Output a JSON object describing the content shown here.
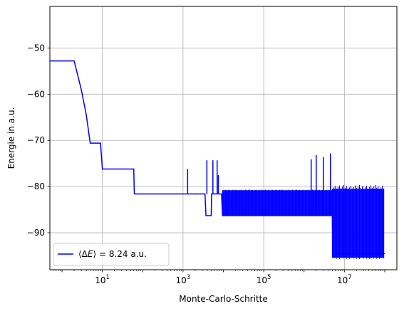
{
  "chart_data": {
    "type": "line",
    "xlabel": "Monte-Carlo-Schritte",
    "ylabel": "Energie in a.u.",
    "x_scale": "log",
    "xlim": [
      0.5,
      200000000
    ],
    "ylim": [
      -98,
      -41
    ],
    "grid": true,
    "legend_position": "bottom-left",
    "x_ticks": [
      {
        "value": 10,
        "base": "10",
        "exp": "1"
      },
      {
        "value": 1000,
        "base": "10",
        "exp": "3"
      },
      {
        "value": 100000,
        "base": "10",
        "exp": "5"
      },
      {
        "value": 10000000,
        "base": "10",
        "exp": "7"
      }
    ],
    "y_ticks": [
      {
        "value": -50,
        "label": "−50"
      },
      {
        "value": -60,
        "label": "−60"
      },
      {
        "value": -70,
        "label": "−70"
      },
      {
        "value": -80,
        "label": "−80"
      },
      {
        "value": -90,
        "label": "−90"
      }
    ],
    "series": [
      {
        "name": "⟨ΔE⟩ = 8.24 a.u.",
        "legend_prefix": "⟨Δ",
        "legend_var": "E",
        "legend_suffix": "⟩ = 8.24 a.u.",
        "color": "#0000ff",
        "points": [
          [
            0.5,
            -52.8
          ],
          [
            2,
            -52.8
          ],
          [
            3,
            -59
          ],
          [
            4,
            -64.5
          ],
          [
            5,
            -70.6
          ],
          [
            9,
            -70.6
          ],
          [
            10,
            -76.2
          ],
          [
            60,
            -76.2
          ],
          [
            62,
            -81.6
          ],
          [
            3500,
            -81.6
          ],
          [
            3700,
            -86.3
          ],
          [
            5000,
            -86.3
          ],
          [
            5100,
            -81.6
          ],
          [
            9000,
            -81.6
          ],
          [
            9500,
            -86.3
          ],
          [
            5000000,
            -86.3
          ],
          [
            5200000,
            -94.5
          ],
          [
            100000000,
            -94.5
          ]
        ],
        "spikes": [
          [
            1300,
            -81.6,
            -76.2
          ],
          [
            3900,
            -81.6,
            -74.3
          ],
          [
            5500,
            -81.6,
            -74.3
          ],
          [
            7000,
            -81.6,
            -74.3
          ],
          [
            7500,
            -81.6,
            -77.5
          ],
          [
            12000,
            -86.3,
            -80.8
          ],
          [
            1500000,
            -86.3,
            -74.1
          ],
          [
            2000000,
            -86.3,
            -73.2
          ],
          [
            3000000,
            -86.3,
            -73.6
          ],
          [
            4500000,
            -86.3,
            -72.8
          ]
        ],
        "noise_bands": [
          {
            "from": 9500,
            "to": 5000000,
            "low": -86.3,
            "high": -80.8
          },
          {
            "from": 5000000,
            "to": 95000000,
            "low": -95.4,
            "high": -80.5
          }
        ]
      }
    ]
  }
}
